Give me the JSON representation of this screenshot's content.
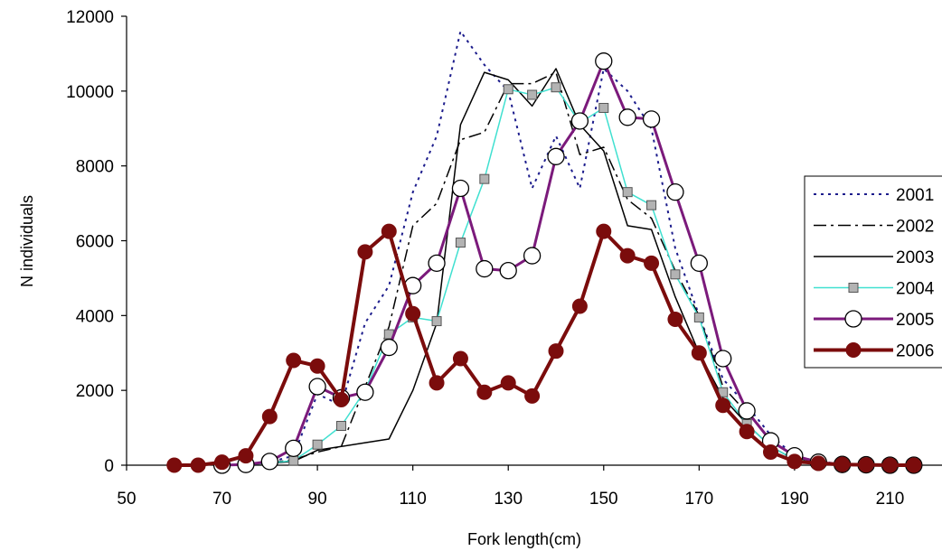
{
  "chart_data": {
    "type": "line",
    "title": "",
    "xlabel": "Fork length(cm)",
    "ylabel": "N individuals",
    "xlim": [
      50,
      230
    ],
    "ylim": [
      0,
      12000
    ],
    "x_ticks": [
      50,
      70,
      90,
      110,
      130,
      150,
      170,
      190,
      210
    ],
    "y_ticks": [
      0,
      2000,
      4000,
      6000,
      8000,
      10000,
      12000
    ],
    "grid": false,
    "legend_position": "right",
    "series": [
      {
        "name": "2001",
        "color": "#1c1c8c",
        "line": "dotted",
        "marker": "none",
        "width": 2,
        "x": [
          70,
          75,
          80,
          85,
          90,
          95,
          100,
          105,
          110,
          115,
          120,
          125,
          130,
          135,
          140,
          145,
          150,
          155,
          160,
          165,
          170,
          175,
          180,
          185,
          190,
          195,
          200,
          205,
          210,
          215
        ],
        "values": [
          0,
          30,
          80,
          250,
          1900,
          1600,
          3800,
          4800,
          7300,
          8800,
          11600,
          10700,
          10000,
          7400,
          8800,
          7400,
          10600,
          10000,
          9000,
          5800,
          4000,
          2300,
          1600,
          800,
          250,
          100,
          30,
          10,
          0,
          0
        ]
      },
      {
        "name": "2002",
        "color": "#000000",
        "line": "dashdot",
        "marker": "none",
        "width": 1.5,
        "x": [
          70,
          75,
          80,
          85,
          90,
          95,
          100,
          105,
          110,
          115,
          120,
          125,
          130,
          135,
          140,
          145,
          150,
          155,
          160,
          165,
          170,
          175,
          180,
          185,
          190,
          195,
          200,
          205,
          210,
          215
        ],
        "values": [
          0,
          20,
          60,
          150,
          350,
          500,
          2100,
          3700,
          6400,
          7000,
          8700,
          8900,
          10200,
          10200,
          10500,
          8300,
          8500,
          7100,
          6600,
          5200,
          4000,
          2100,
          1400,
          700,
          200,
          80,
          20,
          10,
          0,
          0
        ]
      },
      {
        "name": "2003",
        "color": "#000000",
        "line": "solid",
        "marker": "none",
        "width": 1.5,
        "x": [
          70,
          75,
          80,
          85,
          90,
          95,
          100,
          105,
          110,
          115,
          120,
          125,
          130,
          135,
          140,
          145,
          150,
          155,
          160,
          165,
          170,
          175,
          180,
          185,
          190,
          195,
          200,
          205,
          210,
          215
        ],
        "values": [
          0,
          20,
          50,
          100,
          400,
          500,
          600,
          700,
          2000,
          3800,
          9100,
          10500,
          10300,
          9600,
          10600,
          9100,
          8400,
          6400,
          6300,
          4500,
          3000,
          1800,
          1100,
          500,
          150,
          60,
          20,
          10,
          0,
          0
        ]
      },
      {
        "name": "2004",
        "color": "#40e0d0",
        "line": "solid",
        "marker": "square",
        "width": 1.5,
        "x": [
          70,
          75,
          80,
          85,
          90,
          95,
          100,
          105,
          110,
          115,
          120,
          125,
          130,
          135,
          140,
          145,
          150,
          155,
          160,
          165,
          170,
          175,
          180,
          185,
          190,
          195,
          200,
          205,
          210,
          215
        ],
        "values": [
          0,
          20,
          60,
          120,
          550,
          1050,
          2000,
          3500,
          3950,
          3850,
          5950,
          7650,
          10050,
          9900,
          10100,
          9150,
          9550,
          7300,
          6950,
          5100,
          3950,
          1950,
          1100,
          500,
          150,
          60,
          20,
          10,
          0,
          0
        ]
      },
      {
        "name": "2005",
        "color": "#7b1a7b",
        "line": "solid",
        "marker": "circle-open",
        "width": 3,
        "x": [
          70,
          75,
          80,
          85,
          90,
          95,
          100,
          105,
          110,
          115,
          120,
          125,
          130,
          135,
          140,
          145,
          150,
          155,
          160,
          165,
          170,
          175,
          180,
          185,
          190,
          195,
          200,
          205,
          210,
          215
        ],
        "values": [
          0,
          20,
          100,
          450,
          2100,
          1800,
          1950,
          3150,
          4800,
          5400,
          7400,
          5250,
          5200,
          5600,
          8250,
          9200,
          10800,
          9300,
          9250,
          7300,
          5400,
          2850,
          1450,
          650,
          250,
          80,
          20,
          10,
          0,
          0
        ]
      },
      {
        "name": "2006",
        "color": "#7b0c0c",
        "line": "solid",
        "marker": "circle-filled",
        "width": 4,
        "x": [
          60,
          65,
          70,
          75,
          80,
          85,
          90,
          95,
          100,
          105,
          110,
          115,
          120,
          125,
          130,
          135,
          140,
          145,
          150,
          155,
          160,
          165,
          170,
          175,
          180,
          185,
          190,
          195,
          200,
          205,
          210,
          215
        ],
        "values": [
          0,
          0,
          80,
          250,
          1300,
          2800,
          2650,
          1750,
          5700,
          6250,
          4050,
          2200,
          2850,
          1950,
          2200,
          1850,
          3050,
          4250,
          6250,
          5600,
          5400,
          3900,
          3000,
          1600,
          900,
          350,
          100,
          50,
          20,
          10,
          0,
          0
        ]
      }
    ]
  }
}
